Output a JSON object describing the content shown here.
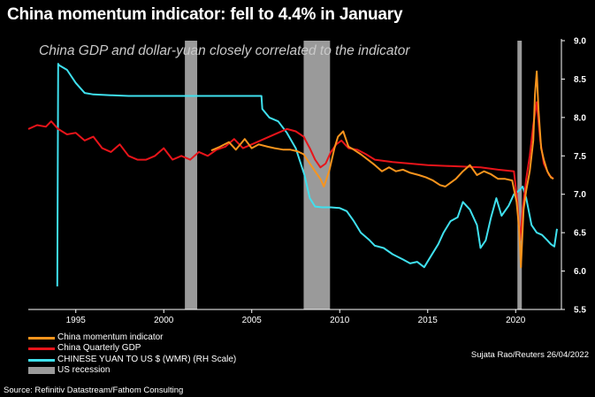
{
  "header": {
    "title": "China momentum indicator: fell to 4.4% in January",
    "subtitle": "China GDP and dollar-yuan closely correlated to the indicator"
  },
  "legend": [
    {
      "label": "China momentum indicator",
      "color": "#F7941D",
      "kind": "line"
    },
    {
      "label": "China Quarterly GDP",
      "color": "#E8141A",
      "kind": "line"
    },
    {
      "label": "CHINESE YUAN TO US $ (WMR) (RH Scale)",
      "color": "#3FE0EE",
      "kind": "line"
    },
    {
      "label": "US recession",
      "color": "#9A9A9A",
      "kind": "box"
    }
  ],
  "credit": "Sujata Rao/Reuters 26/04/2022",
  "source": "Source: Refinitiv Datastream/Fathom Consulting",
  "colors": {
    "momentum": "#F7941D",
    "gdp": "#E8141A",
    "yuan": "#3FE0EE",
    "recession": "#9A9A9A",
    "background": "#000000"
  },
  "chart_data": {
    "type": "line",
    "xlim": [
      1992.3,
      2022.6
    ],
    "ylim_right": [
      5.5,
      9.0
    ],
    "x_ticks": [
      "1995",
      "2000",
      "2005",
      "2010",
      "2015",
      "2020"
    ],
    "y_ticks_right": [
      "5.5",
      "6.0",
      "6.5",
      "7.0",
      "7.5",
      "8.0",
      "8.5",
      "9.0"
    ],
    "recessions": [
      [
        2001.2,
        2001.9
      ],
      [
        2007.95,
        2009.45
      ],
      [
        2020.1,
        2020.35
      ]
    ],
    "series": [
      {
        "name": "China momentum indicator",
        "color": "#F7941D",
        "x": [
          2002.7,
          2003.2,
          2003.7,
          2004.1,
          2004.6,
          2005.0,
          2005.4,
          2005.9,
          2006.3,
          2006.8,
          2007.2,
          2007.6,
          2007.95,
          2008.3,
          2008.6,
          2008.9,
          2009.1,
          2009.4,
          2009.7,
          2009.9,
          2010.2,
          2010.5,
          2010.8,
          2011.2,
          2011.6,
          2012.0,
          2012.4,
          2012.8,
          2013.2,
          2013.6,
          2014.0,
          2014.5,
          2014.9,
          2015.3,
          2015.7,
          2016.0,
          2016.3,
          2016.6,
          2017.0,
          2017.4,
          2017.8,
          2018.2,
          2018.6,
          2019.0,
          2019.4,
          2019.8,
          2020.05,
          2020.2,
          2020.3,
          2020.45,
          2020.6,
          2020.8,
          2021.0,
          2021.1,
          2021.2,
          2021.3,
          2021.45,
          2021.6,
          2021.8,
          2022.0,
          2022.15
        ],
        "values": [
          7.57,
          7.62,
          7.68,
          7.58,
          7.72,
          7.6,
          7.65,
          7.62,
          7.6,
          7.58,
          7.58,
          7.56,
          7.52,
          7.4,
          7.3,
          7.2,
          7.1,
          7.3,
          7.6,
          7.75,
          7.82,
          7.62,
          7.58,
          7.52,
          7.45,
          7.38,
          7.3,
          7.35,
          7.3,
          7.32,
          7.28,
          7.25,
          7.22,
          7.18,
          7.12,
          7.1,
          7.15,
          7.2,
          7.3,
          7.38,
          7.25,
          7.3,
          7.26,
          7.2,
          7.2,
          7.18,
          6.9,
          6.55,
          6.05,
          6.8,
          7.05,
          7.3,
          7.7,
          8.3,
          8.6,
          8.1,
          7.6,
          7.45,
          7.3,
          7.22,
          7.2
        ]
      },
      {
        "name": "China Quarterly GDP",
        "color": "#E8141A",
        "x": [
          1992.3,
          1992.8,
          1993.3,
          1993.6,
          1994.0,
          1994.5,
          1995.0,
          1995.5,
          1996.0,
          1996.5,
          1997.0,
          1997.5,
          1998.0,
          1998.5,
          1999.0,
          1999.5,
          2000.0,
          2000.5,
          2001.0,
          2001.5,
          2002.0,
          2002.5,
          2003.0,
          2003.5,
          2004.0,
          2004.5,
          2005.0,
          2005.5,
          2006.0,
          2006.5,
          2007.0,
          2007.5,
          2007.95,
          2008.3,
          2008.6,
          2008.9,
          2009.2,
          2009.5,
          2009.8,
          2010.1,
          2010.5,
          2011.0,
          2011.5,
          2012.0,
          2013.0,
          2014.0,
          2015.0,
          2016.0,
          2017.0,
          2018.0,
          2019.0,
          2019.9,
          2020.1,
          2020.25,
          2020.4,
          2020.6,
          2020.8,
          2021.0,
          2021.2,
          2021.4,
          2021.6,
          2021.9,
          2022.15
        ],
        "values": [
          7.85,
          7.9,
          7.88,
          7.95,
          7.85,
          7.78,
          7.8,
          7.7,
          7.75,
          7.6,
          7.55,
          7.65,
          7.5,
          7.45,
          7.45,
          7.5,
          7.6,
          7.45,
          7.5,
          7.45,
          7.55,
          7.5,
          7.58,
          7.62,
          7.72,
          7.6,
          7.65,
          7.7,
          7.75,
          7.8,
          7.85,
          7.82,
          7.75,
          7.6,
          7.45,
          7.35,
          7.4,
          7.55,
          7.65,
          7.7,
          7.6,
          7.58,
          7.52,
          7.45,
          7.42,
          7.4,
          7.38,
          7.37,
          7.36,
          7.35,
          7.32,
          7.3,
          6.9,
          6.4,
          6.8,
          7.2,
          7.5,
          7.9,
          8.2,
          7.7,
          7.4,
          7.25,
          7.2
        ]
      },
      {
        "name": "CHINESE YUAN TO US $ (WMR) (RH Scale)",
        "color": "#3FE0EE",
        "x": [
          1993.95,
          1994.0,
          1994.05,
          1994.5,
          1995.0,
          1995.5,
          1996.0,
          1997.0,
          1998.0,
          1999.0,
          2000.0,
          2001.0,
          2002.0,
          2003.0,
          2004.0,
          2005.0,
          2005.55,
          2005.6,
          2006.0,
          2006.5,
          2007.0,
          2007.5,
          2008.0,
          2008.3,
          2008.6,
          2009.0,
          2009.5,
          2010.0,
          2010.4,
          2010.8,
          2011.2,
          2011.7,
          2012.0,
          2012.5,
          2013.0,
          2013.6,
          2014.0,
          2014.4,
          2014.8,
          2015.2,
          2015.6,
          2015.9,
          2016.3,
          2016.7,
          2017.0,
          2017.4,
          2017.8,
          2018.0,
          2018.3,
          2018.6,
          2018.9,
          2019.2,
          2019.6,
          2019.9,
          2020.2,
          2020.4,
          2020.6,
          2020.9,
          2021.2,
          2021.5,
          2021.8,
          2022.0,
          2022.2,
          2022.35
        ],
        "values": [
          5.8,
          8.7,
          8.68,
          8.62,
          8.45,
          8.32,
          8.3,
          8.29,
          8.28,
          8.28,
          8.28,
          8.28,
          8.28,
          8.28,
          8.28,
          8.28,
          8.28,
          8.11,
          8.0,
          7.95,
          7.8,
          7.6,
          7.25,
          6.95,
          6.84,
          6.83,
          6.83,
          6.82,
          6.78,
          6.65,
          6.5,
          6.4,
          6.33,
          6.3,
          6.22,
          6.15,
          6.1,
          6.12,
          6.05,
          6.2,
          6.35,
          6.5,
          6.65,
          6.7,
          6.9,
          6.8,
          6.6,
          6.3,
          6.4,
          6.7,
          6.95,
          6.72,
          6.85,
          7.0,
          7.05,
          7.1,
          6.95,
          6.6,
          6.5,
          6.47,
          6.4,
          6.35,
          6.32,
          6.55
        ]
      }
    ]
  }
}
